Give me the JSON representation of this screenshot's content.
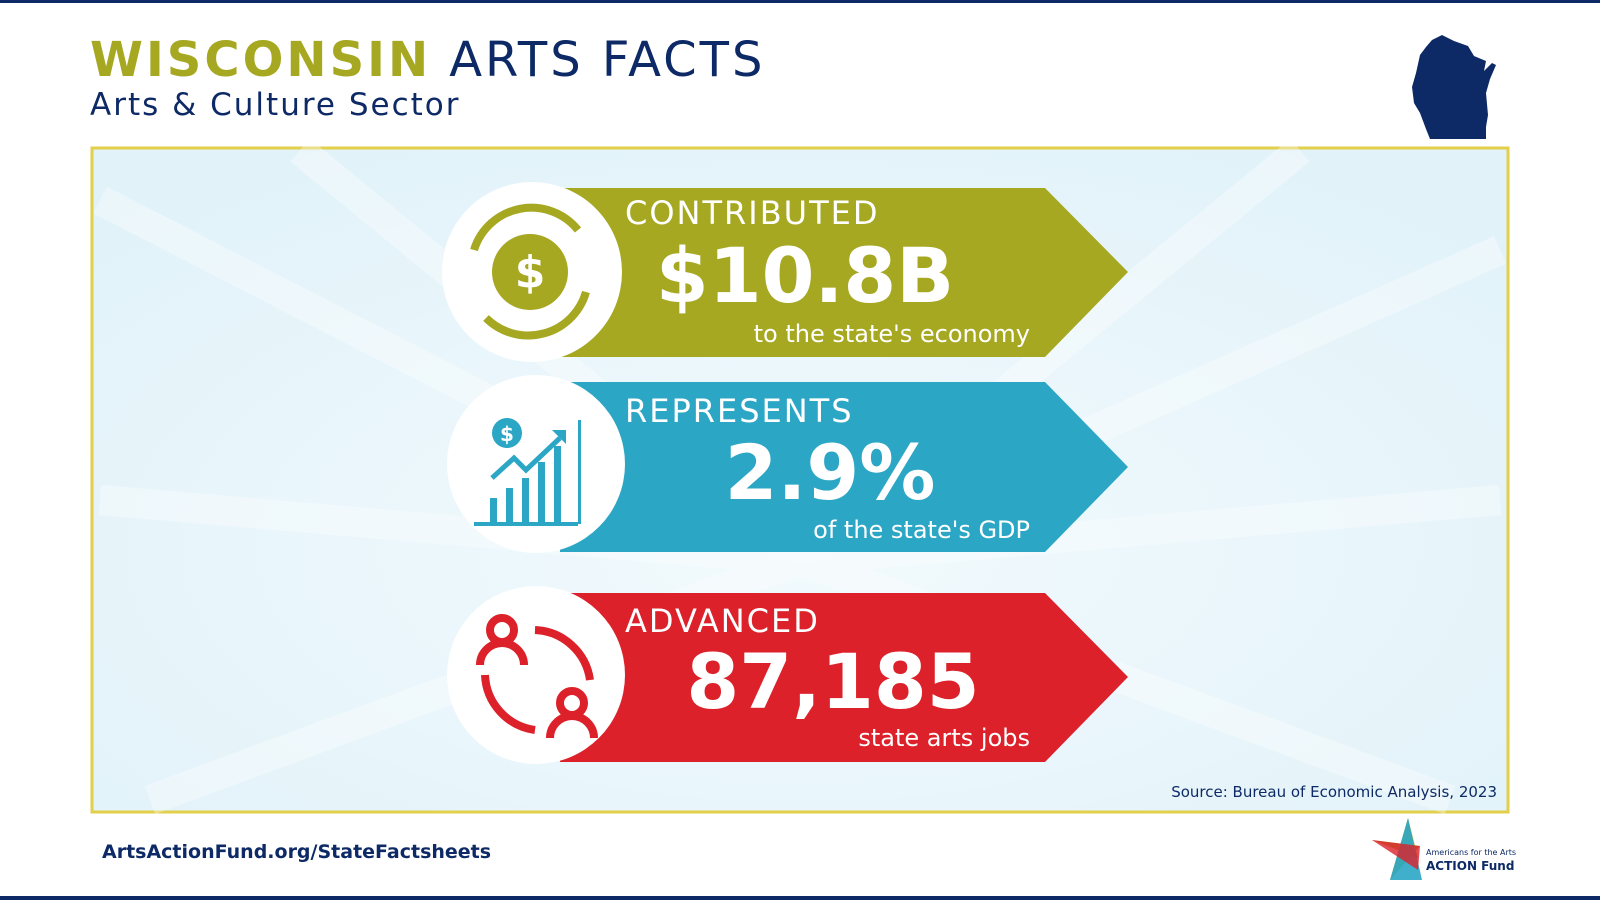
{
  "header": {
    "title_highlight": "WISCONSIN",
    "title_rest": "ARTS FACTS",
    "subtitle": "Arts & Culture Sector"
  },
  "facts": [
    {
      "label": "CONTRIBUTED",
      "value": "$10.8B",
      "caption": "to the state's economy"
    },
    {
      "label": "REPRESENTS",
      "value": "2.9%",
      "caption": "of the state's GDP"
    },
    {
      "label": "ADVANCED",
      "value": "87,185",
      "caption": "state arts jobs"
    }
  ],
  "source": "Source: Bureau of Economic Analysis, 2023",
  "footer": {
    "link": "ArtsActionFund.org/StateFactsheets",
    "logo_small": "Americans for the Arts",
    "logo_big": "ACTION Fund"
  }
}
